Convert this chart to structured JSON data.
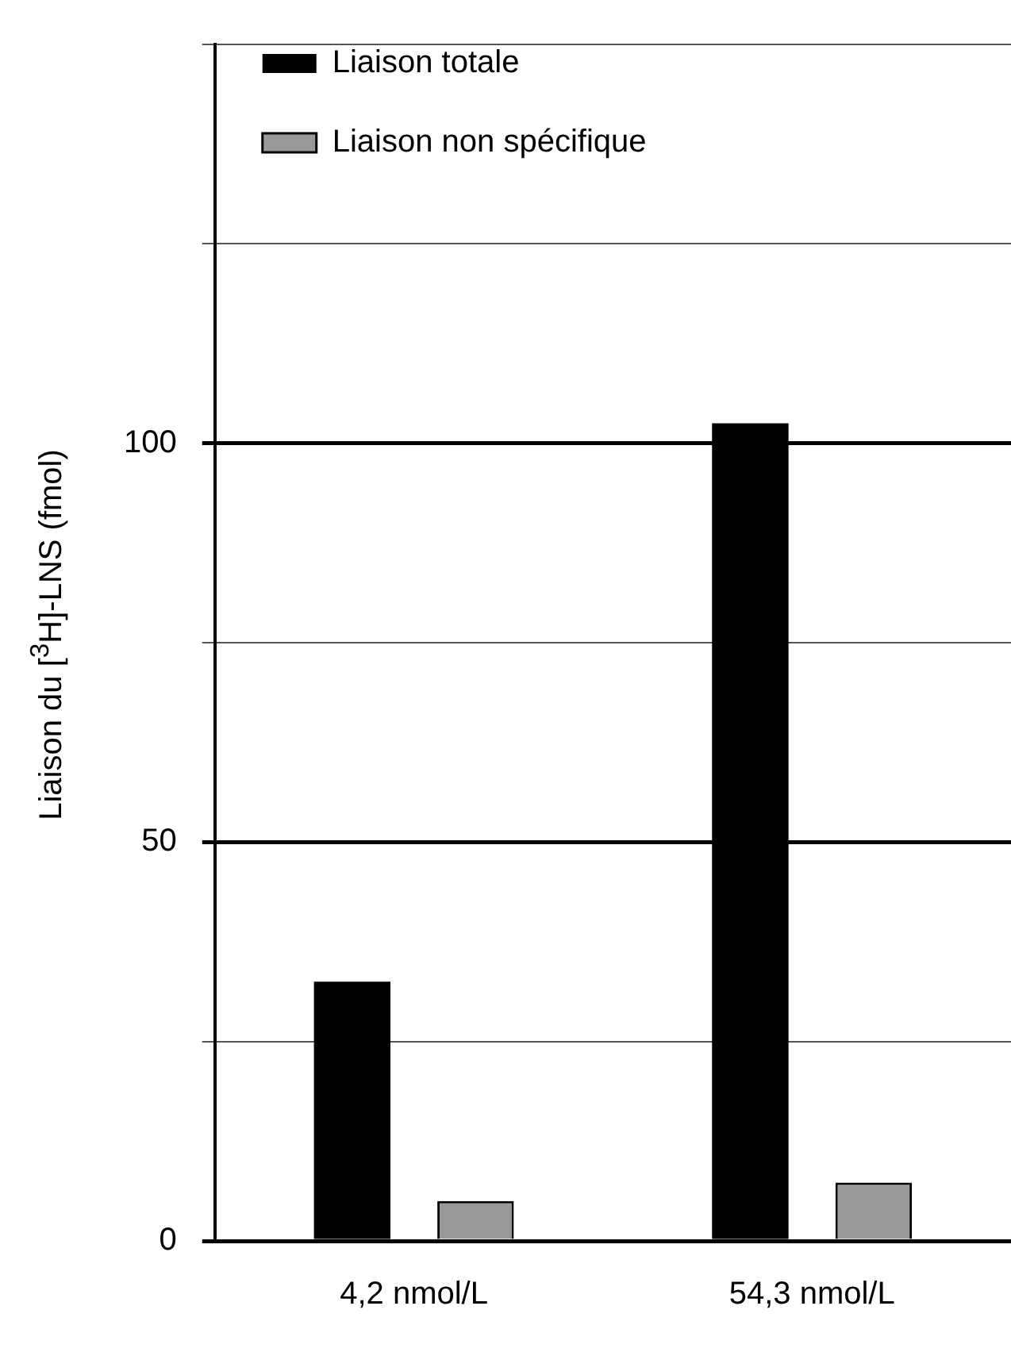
{
  "chart_data": {
    "type": "bar",
    "ylabel": "Liaison du [$^{3}$H]-LNS  (fmol)",
    "categories": [
      "4,2 nmol/L",
      "54,3 nmol/L"
    ],
    "series": [
      {
        "name": "Liaison totale",
        "color": "#000000",
        "values": [
          32.5,
          102.5
        ]
      },
      {
        "name": "Liaison non spécifique",
        "color": "#999999",
        "values": [
          5,
          7.3
        ]
      }
    ],
    "ylim": [
      0,
      150
    ],
    "yticks": [
      0,
      {
        "value": 25,
        "label": null
      },
      50,
      {
        "value": 75,
        "label": null
      },
      100,
      {
        "value": 125,
        "label": null
      },
      {
        "value": 150,
        "label": null
      }
    ],
    "grid": "y",
    "legend": "top left"
  }
}
